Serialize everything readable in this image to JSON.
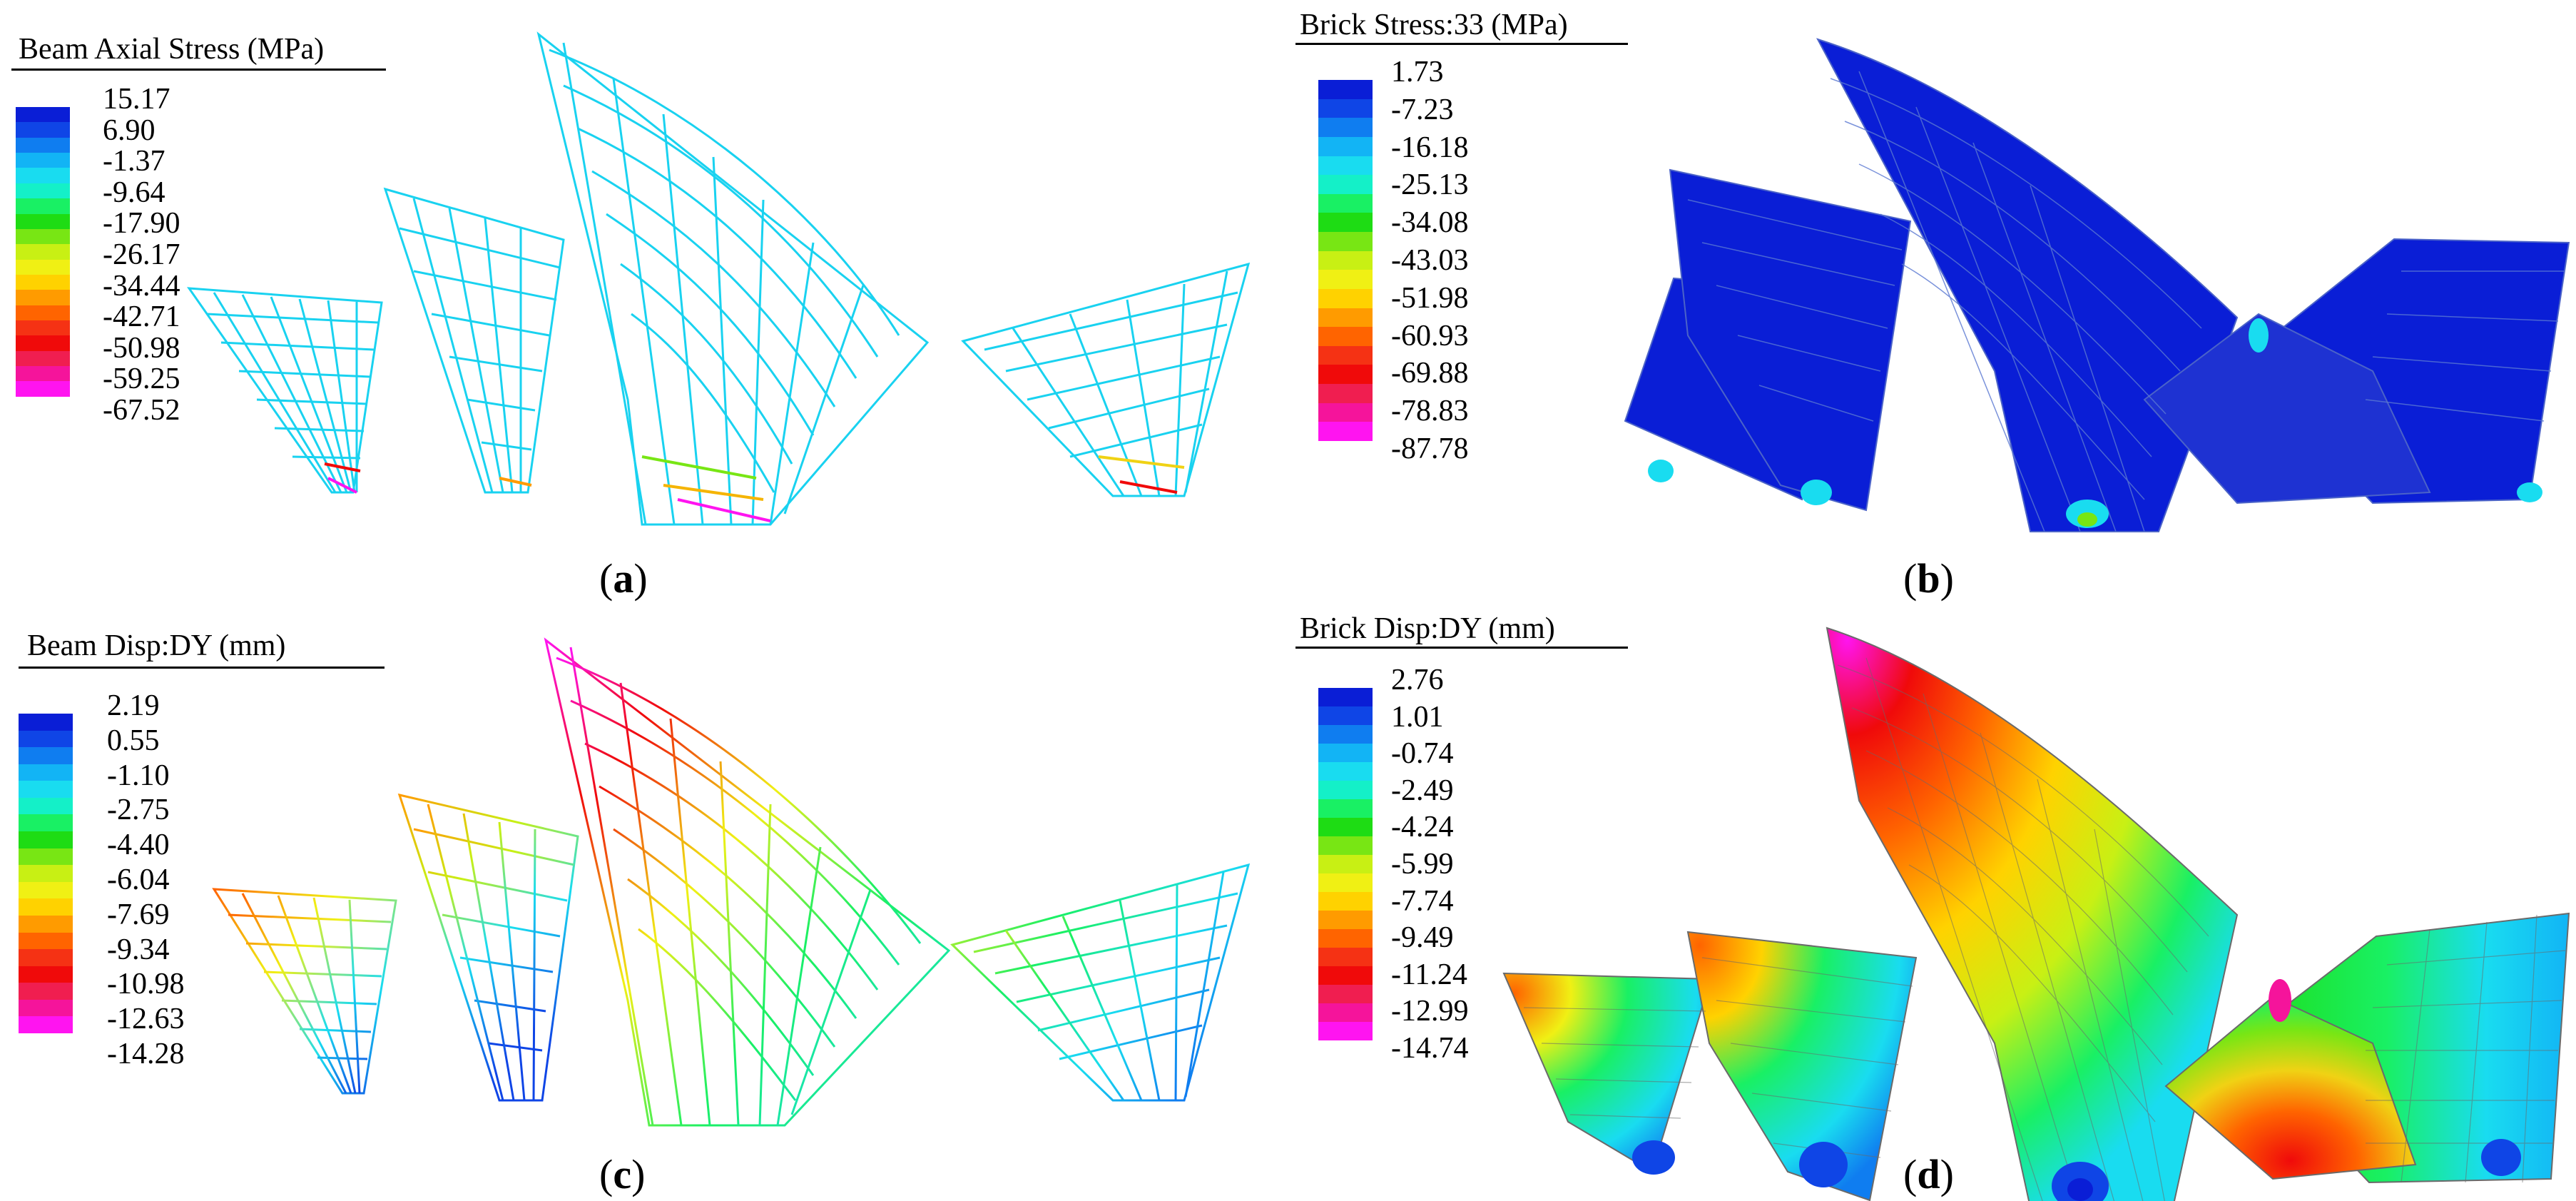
{
  "panels": [
    {
      "id": "a",
      "legend_title": "Beam Axial Stress  (MPa)",
      "ticks": [
        "15.17",
        "6.90",
        "-1.37",
        "-9.64",
        "-17.90",
        "-26.17",
        "-34.44",
        "-42.71",
        "-50.98",
        "-59.25",
        "-67.52"
      ],
      "caption_open": "(",
      "caption_letter": "a",
      "caption_close": ")"
    },
    {
      "id": "b",
      "legend_title": "Brick Stress:33  (MPa)",
      "ticks": [
        "1.73",
        "-7.23",
        "-16.18",
        "-25.13",
        "-34.08",
        "-43.03",
        "-51.98",
        "-60.93",
        "-69.88",
        "-78.83",
        "-87.78"
      ],
      "caption_open": "(",
      "caption_letter": "b",
      "caption_close": ")"
    },
    {
      "id": "c",
      "legend_title": "Beam Disp:DY  (mm)",
      "ticks": [
        "2.19",
        "0.55",
        "-1.10",
        "-2.75",
        "-4.40",
        "-6.04",
        "-7.69",
        "-9.34",
        "-10.98",
        "-12.63",
        "-14.28"
      ],
      "caption_open": "(",
      "caption_letter": "c",
      "caption_close": ")"
    },
    {
      "id": "d",
      "legend_title": "Brick Disp:DY  (mm)",
      "ticks": [
        "2.76",
        "1.01",
        "-0.74",
        "-2.49",
        "-4.24",
        "-5.99",
        "-7.74",
        "-9.49",
        "-11.24",
        "-12.99",
        "-14.74"
      ],
      "caption_open": "(",
      "caption_letter": "d",
      "caption_close": ")"
    }
  ],
  "colormap": [
    "#0a1ed6",
    "#0f45e6",
    "#0f7df0",
    "#12b4f5",
    "#19dcf0",
    "#14f0c8",
    "#19f064",
    "#1edc14",
    "#78e614",
    "#c8f014",
    "#f0f014",
    "#ffd200",
    "#ff9b00",
    "#ff6400",
    "#f53214",
    "#f00a0a",
    "#f01e50",
    "#f5149b",
    "#ff14f0"
  ]
}
